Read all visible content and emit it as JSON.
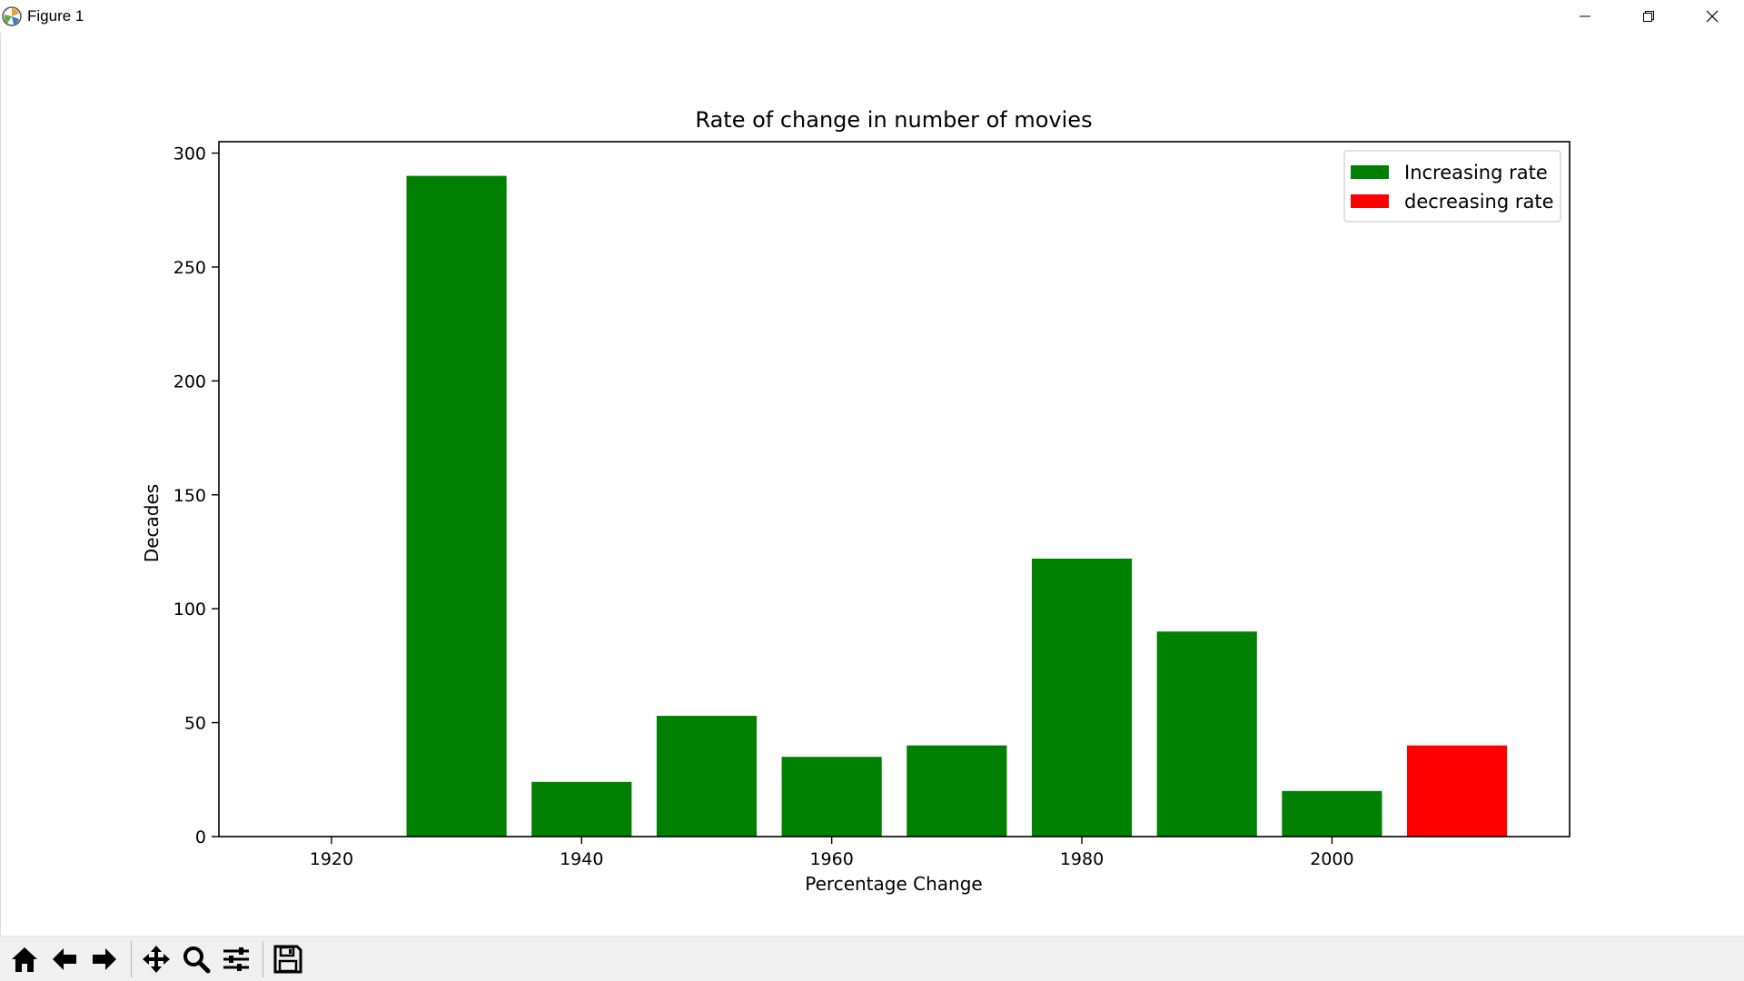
{
  "window": {
    "title": "Figure 1",
    "controls": [
      "minimize-icon",
      "restore-icon",
      "close-icon"
    ]
  },
  "toolbar": {
    "buttons": [
      {
        "icon": "home-icon"
      },
      {
        "icon": "back-arrow-icon"
      },
      {
        "icon": "forward-arrow-icon"
      },
      {
        "icon": "pan-icon"
      },
      {
        "icon": "zoom-icon"
      },
      {
        "icon": "configure-subplots-icon"
      },
      {
        "icon": "save-icon"
      }
    ]
  },
  "chart_data": {
    "type": "bar",
    "title": "Rate of change in number of movies",
    "xlabel": "Percentage Change",
    "ylabel": "Decades",
    "xlim": [
      1911,
      2019
    ],
    "ylim": [
      0,
      305
    ],
    "xticks": [
      1920,
      1940,
      1960,
      1980,
      2000
    ],
    "yticks": [
      0,
      50,
      100,
      150,
      200,
      250,
      300
    ],
    "bar_width": 8,
    "x": [
      1920,
      1930,
      1940,
      1950,
      1960,
      1970,
      1980,
      1990,
      2000,
      2010
    ],
    "values": [
      0,
      290,
      24,
      53,
      35,
      40,
      122,
      90,
      20,
      40
    ],
    "bar_series": [
      "increasing",
      "increasing",
      "increasing",
      "increasing",
      "increasing",
      "increasing",
      "increasing",
      "increasing",
      "increasing",
      "decreasing"
    ],
    "series": [
      {
        "key": "increasing",
        "name": "Increasing rate",
        "color": "#008000"
      },
      {
        "key": "decreasing",
        "name": "decreasing rate",
        "color": "#ff0000"
      }
    ],
    "legend_position": "top-right",
    "grid": false
  }
}
